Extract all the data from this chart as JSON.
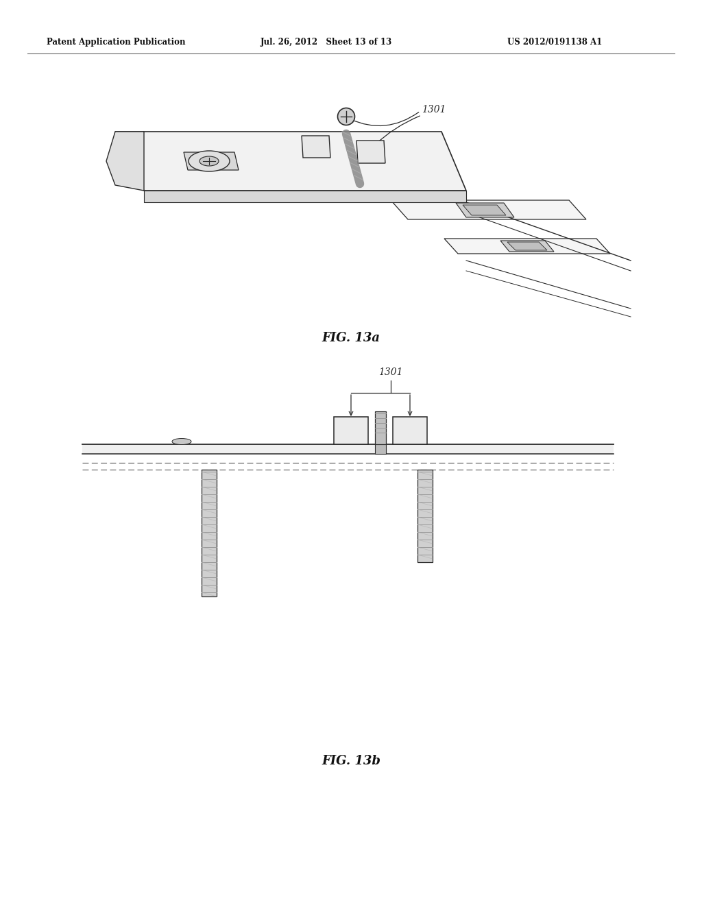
{
  "header_left": "Patent Application Publication",
  "header_mid": "Jul. 26, 2012   Sheet 13 of 13",
  "header_right": "US 2012/0191138 A1",
  "fig13a_label": "FIG. 13a",
  "fig13b_label": "FIG. 13b",
  "label_1301": "1301",
  "bg_color": "#ffffff",
  "line_color": "#2a2a2a",
  "plate_fill": "#f0f0f0",
  "plate_edge": "#2a2a2a",
  "screw_fill": "#c8c8c8",
  "bushing_fill": "#e0e0e0"
}
